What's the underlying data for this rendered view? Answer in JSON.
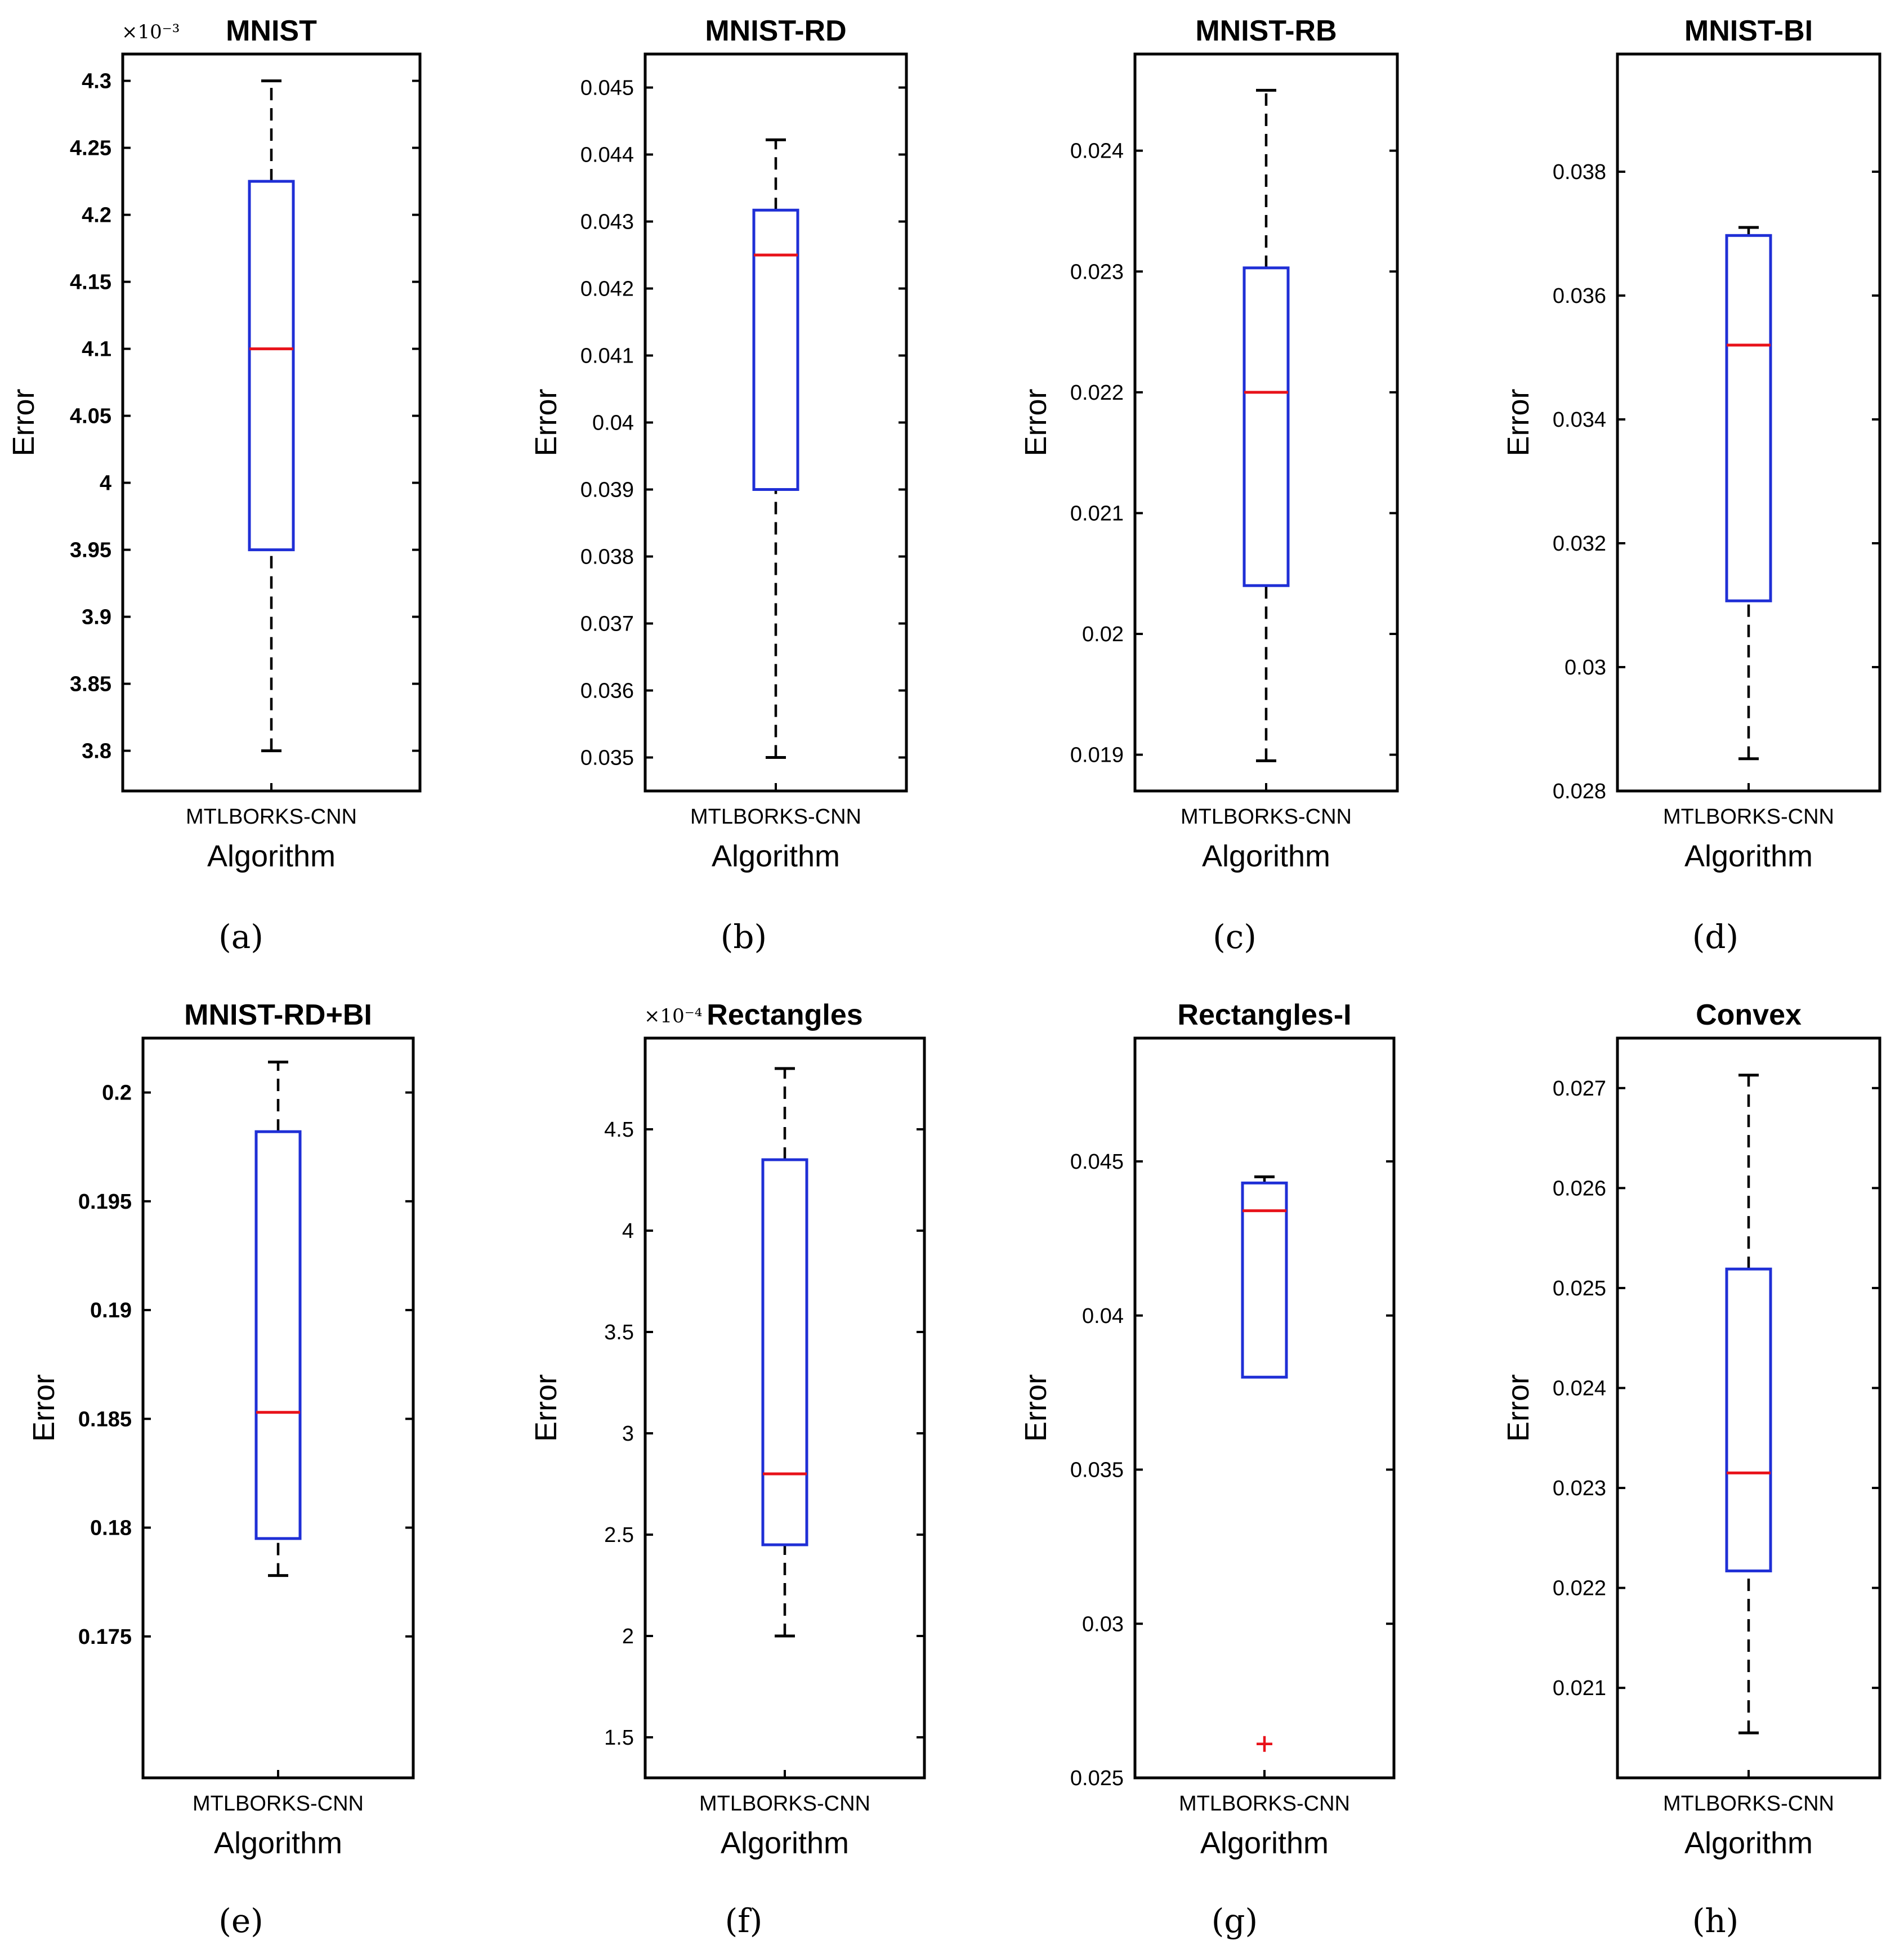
{
  "chart_data": [
    {
      "type": "box",
      "panel": "(a)",
      "title": "MNIST",
      "xlabel": "Algorithm",
      "ylabel": "Error",
      "category": "MTLBORKS-CNN",
      "multiplier": "×10⁻³",
      "bold_ticks": true,
      "ylim": [
        3.77,
        4.32
      ],
      "ticks": [
        3.8,
        3.85,
        3.9,
        3.95,
        4.0,
        4.05,
        4.1,
        4.15,
        4.2,
        4.25,
        4.3
      ],
      "tick_labels": [
        "3.8",
        "3.85",
        "3.9",
        "3.95",
        "4",
        "4.05",
        "4.1",
        "4.15",
        "4.2",
        "4.25",
        "4.3"
      ],
      "box": {
        "min": 3.8,
        "q1": 3.95,
        "median": 4.1,
        "q3": 4.225,
        "max": 4.3
      },
      "outliers": []
    },
    {
      "type": "box",
      "panel": "(b)",
      "title": "MNIST-RD",
      "xlabel": "Algorithm",
      "ylabel": "Error",
      "category": "MTLBORKS-CNN",
      "multiplier": "",
      "bold_ticks": false,
      "ylim": [
        0.0345,
        0.0455
      ],
      "ticks": [
        0.035,
        0.036,
        0.037,
        0.038,
        0.039,
        0.04,
        0.041,
        0.042,
        0.043,
        0.044,
        0.045
      ],
      "tick_labels": [
        "0.035",
        "0.036",
        "0.037",
        "0.038",
        "0.039",
        "0.04",
        "0.041",
        "0.042",
        "0.043",
        "0.044",
        "0.045"
      ],
      "box": {
        "min": 0.035,
        "q1": 0.039,
        "median": 0.0425,
        "q3": 0.04317,
        "max": 0.04422
      },
      "outliers": []
    },
    {
      "type": "box",
      "panel": "(c)",
      "title": "MNIST-RB",
      "xlabel": "Algorithm",
      "ylabel": "Error",
      "category": "MTLBORKS-CNN",
      "multiplier": "",
      "bold_ticks": false,
      "ylim": [
        0.0187,
        0.0248
      ],
      "ticks": [
        0.019,
        0.02,
        0.021,
        0.022,
        0.023,
        0.024
      ],
      "tick_labels": [
        "0.019",
        "0.02",
        "0.021",
        "0.022",
        "0.023",
        "0.024"
      ],
      "box": {
        "min": 0.01895,
        "q1": 0.0204,
        "median": 0.022,
        "q3": 0.02303,
        "max": 0.0245
      },
      "outliers": []
    },
    {
      "type": "box",
      "panel": "(d)",
      "title": "MNIST-BI",
      "xlabel": "Algorithm",
      "ylabel": "Error",
      "category": "MTLBORKS-CNN",
      "multiplier": "",
      "bold_ticks": false,
      "ylim": [
        0.028,
        0.0399
      ],
      "ticks": [
        0.028,
        0.03,
        0.032,
        0.034,
        0.036,
        0.038
      ],
      "tick_labels": [
        "0.028",
        "0.03",
        "0.032",
        "0.034",
        "0.036",
        "0.038"
      ],
      "box": {
        "min": 0.02852,
        "q1": 0.03107,
        "median": 0.0352,
        "q3": 0.03697,
        "max": 0.0371
      },
      "outliers": []
    },
    {
      "type": "box",
      "panel": "(e)",
      "title": "MNIST-RD+BI",
      "xlabel": "Algorithm",
      "ylabel": "Error",
      "category": "MTLBORKS-CNN",
      "multiplier": "",
      "bold_ticks": true,
      "ylim": [
        0.1685,
        0.2025
      ],
      "ticks": [
        0.175,
        0.18,
        0.185,
        0.19,
        0.195,
        0.2
      ],
      "tick_labels": [
        "0.175",
        "0.18",
        "0.185",
        "0.19",
        "0.195",
        "0.2"
      ],
      "box": {
        "min": 0.1778,
        "q1": 0.1795,
        "median": 0.1853,
        "q3": 0.1982,
        "max": 0.2014
      },
      "outliers": []
    },
    {
      "type": "box",
      "panel": "(f)",
      "title": "Rectangles",
      "xlabel": "Algorithm",
      "ylabel": "Error",
      "category": "MTLBORKS-CNN",
      "multiplier": "×10⁻⁴",
      "bold_ticks": false,
      "ylim": [
        1.3,
        4.95
      ],
      "ticks": [
        1.5,
        2.0,
        2.5,
        3.0,
        3.5,
        4.0,
        4.5
      ],
      "tick_labels": [
        "1.5",
        "2",
        "2.5",
        "3",
        "3.5",
        "4",
        "4.5"
      ],
      "box": {
        "min": 2.0,
        "q1": 2.45,
        "median": 2.8,
        "q3": 4.35,
        "max": 4.8
      },
      "outliers": []
    },
    {
      "type": "box",
      "panel": "(g)",
      "title": "Rectangles-I",
      "xlabel": "Algorithm",
      "ylabel": "Error",
      "category": "MTLBORKS-CNN",
      "multiplier": "",
      "bold_ticks": false,
      "ylim": [
        0.025,
        0.049
      ],
      "ticks": [
        0.025,
        0.03,
        0.035,
        0.04,
        0.045
      ],
      "tick_labels": [
        "0.025",
        "0.03",
        "0.035",
        "0.04",
        "0.045"
      ],
      "box": {
        "min": 0.038,
        "q1": 0.038,
        "median": 0.0434,
        "q3": 0.0443,
        "max": 0.0445
      },
      "outliers": [
        0.0261
      ]
    },
    {
      "type": "box",
      "panel": "(h)",
      "title": "Convex",
      "xlabel": "Algorithm",
      "ylabel": "Error",
      "category": "MTLBORKS-CNN",
      "multiplier": "",
      "bold_ticks": false,
      "ylim": [
        0.0201,
        0.0275
      ],
      "ticks": [
        0.021,
        0.022,
        0.023,
        0.024,
        0.025,
        0.026,
        0.027
      ],
      "tick_labels": [
        "0.021",
        "0.022",
        "0.023",
        "0.024",
        "0.025",
        "0.026",
        "0.027"
      ],
      "box": {
        "min": 0.02055,
        "q1": 0.02217,
        "median": 0.02315,
        "q3": 0.02519,
        "max": 0.02713
      },
      "outliers": []
    }
  ],
  "colors": {
    "box": "#1f2fd6",
    "median": "#e8121a",
    "whisker": "#000000",
    "outlier": "#e8121a"
  }
}
